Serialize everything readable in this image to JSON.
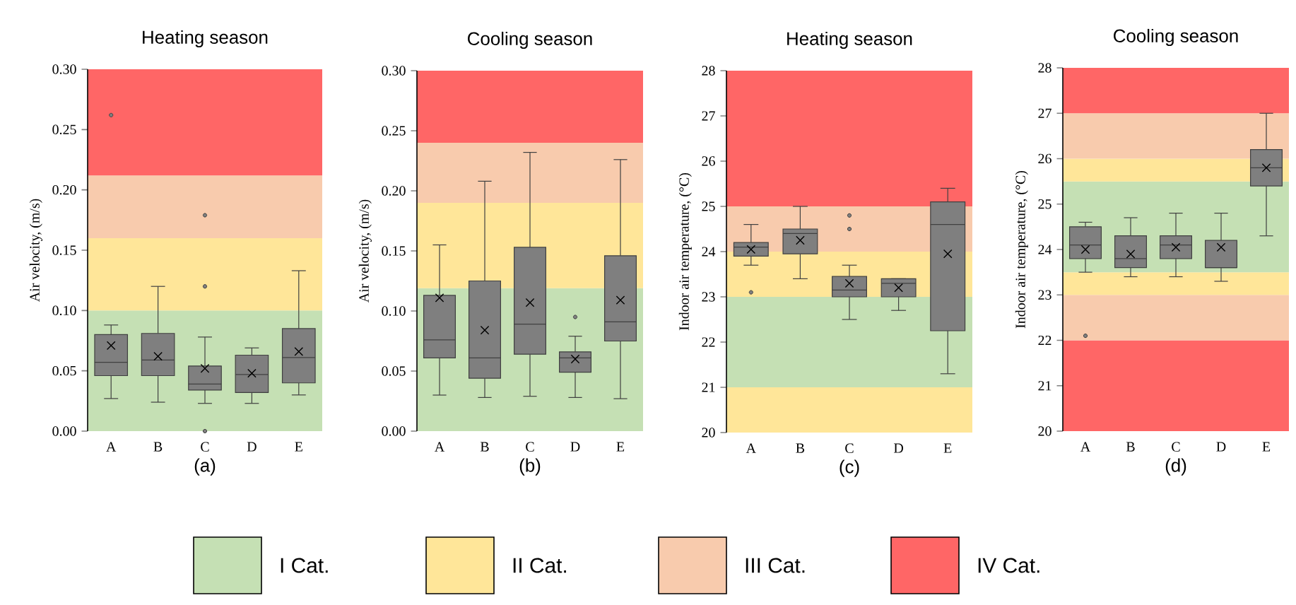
{
  "chart_data": [
    {
      "type": "box",
      "title": "Heating season",
      "xlabel": "(a)",
      "ylabel": "Air velocity, (m/s)",
      "categories": [
        "A",
        "B",
        "C",
        "D",
        "E"
      ],
      "ylim": [
        0,
        0.3
      ],
      "yticks": [
        {
          "value": 0,
          "label": "0.00"
        },
        {
          "value": 0.05,
          "label": "0.05"
        },
        {
          "value": 0.1,
          "label": "0.10"
        },
        {
          "value": 0.15,
          "label": "0.15"
        },
        {
          "value": 0.2,
          "label": "0.20"
        },
        {
          "value": 0.25,
          "label": "0.25"
        },
        {
          "value": 0.3,
          "label": "0.30"
        }
      ],
      "bands": [
        {
          "axis": "y",
          "from": 0,
          "to": 0.1,
          "color": "#c5e0b4"
        },
        {
          "axis": "y",
          "from": 0.1,
          "to": 0.16,
          "color": "#ffe699"
        },
        {
          "axis": "y",
          "from": 0.16,
          "to": 0.212,
          "color": "#f8cbad"
        },
        {
          "axis": "y",
          "from": 0.212,
          "to": 0.3,
          "color": "#ff6666"
        }
      ],
      "series": [
        {
          "color": "#7f7f7f",
          "boxes": [
            {
              "low": 0.027,
              "q1": 0.046,
              "median": 0.057,
              "q3": 0.08,
              "high": 0.088,
              "mean": 0.071,
              "outliers": [
                0.262
              ]
            },
            {
              "low": 0.024,
              "q1": 0.046,
              "median": 0.059,
              "q3": 0.081,
              "high": 0.12,
              "mean": 0.062
            },
            {
              "low": 0.023,
              "q1": 0.034,
              "median": 0.039,
              "q3": 0.054,
              "high": 0.078,
              "mean": 0.052,
              "outliers": [
                0.0,
                0.12,
                0.179
              ]
            },
            {
              "low": 0.023,
              "q1": 0.032,
              "median": 0.047,
              "q3": 0.063,
              "high": 0.069,
              "mean": 0.048
            },
            {
              "low": 0.03,
              "q1": 0.04,
              "median": 0.061,
              "q3": 0.085,
              "high": 0.133,
              "mean": 0.066
            }
          ]
        }
      ]
    },
    {
      "type": "box",
      "title": "Cooling season",
      "xlabel": "(b)",
      "ylabel": "Air velocity, (m/s)",
      "categories": [
        "A",
        "B",
        "C",
        "D",
        "E"
      ],
      "ylim": [
        0,
        0.3
      ],
      "yticks": [
        {
          "value": 0,
          "label": "0.00"
        },
        {
          "value": 0.05,
          "label": "0.05"
        },
        {
          "value": 0.1,
          "label": "0.10"
        },
        {
          "value": 0.15,
          "label": "0.15"
        },
        {
          "value": 0.2,
          "label": "0.20"
        },
        {
          "value": 0.25,
          "label": "0.25"
        },
        {
          "value": 0.3,
          "label": "0.30"
        }
      ],
      "bands": [
        {
          "axis": "y",
          "from": 0,
          "to": 0.119,
          "color": "#c5e0b4"
        },
        {
          "axis": "y",
          "from": 0.119,
          "to": 0.19,
          "color": "#ffe699"
        },
        {
          "axis": "y",
          "from": 0.19,
          "to": 0.24,
          "color": "#f8cbad"
        },
        {
          "axis": "y",
          "from": 0.24,
          "to": 0.3,
          "color": "#ff6666"
        }
      ],
      "series": [
        {
          "color": "#7f7f7f",
          "boxes": [
            {
              "low": 0.03,
              "q1": 0.061,
              "median": 0.076,
              "q3": 0.113,
              "high": 0.155,
              "mean": 0.111
            },
            {
              "low": 0.028,
              "q1": 0.044,
              "median": 0.061,
              "q3": 0.125,
              "high": 0.208,
              "mean": 0.084
            },
            {
              "low": 0.029,
              "q1": 0.064,
              "median": 0.089,
              "q3": 0.153,
              "high": 0.232,
              "mean": 0.107
            },
            {
              "low": 0.028,
              "q1": 0.049,
              "median": 0.061,
              "q3": 0.066,
              "high": 0.079,
              "mean": 0.06,
              "outliers": [
                0.095
              ]
            },
            {
              "low": 0.027,
              "q1": 0.075,
              "median": 0.091,
              "q3": 0.146,
              "high": 0.226,
              "mean": 0.109
            }
          ]
        }
      ]
    },
    {
      "type": "box",
      "title": "Heating season",
      "xlabel": "(c)",
      "ylabel": "Indoor air temperature, (°C)",
      "categories": [
        "A",
        "B",
        "C",
        "D",
        "E"
      ],
      "ylim": [
        20,
        28
      ],
      "yticks": [
        20,
        21,
        22,
        23,
        24,
        25,
        26,
        27,
        28
      ],
      "bands": [
        {
          "axis": "y",
          "from": 20,
          "to": 21,
          "color": "#ffe699"
        },
        {
          "axis": "y",
          "from": 21,
          "to": 23,
          "color": "#c5e0b4"
        },
        {
          "axis": "y",
          "from": 23,
          "to": 24,
          "color": "#ffe699"
        },
        {
          "axis": "y",
          "from": 24,
          "to": 25,
          "color": "#f8cbad"
        },
        {
          "axis": "y",
          "from": 25,
          "to": 28,
          "color": "#ff6666"
        }
      ],
      "series": [
        {
          "color": "#7f7f7f",
          "boxes": [
            {
              "low": 23.7,
              "q1": 23.9,
              "median": 24.1,
              "q3": 24.2,
              "high": 24.6,
              "mean": 24.05,
              "outliers": [
                23.1
              ]
            },
            {
              "low": 23.4,
              "q1": 23.95,
              "median": 24.4,
              "q3": 24.5,
              "high": 25.0,
              "mean": 24.25
            },
            {
              "low": 22.5,
              "q1": 23.0,
              "median": 23.15,
              "q3": 23.45,
              "high": 23.7,
              "mean": 23.3,
              "outliers": [
                24.5,
                24.8
              ]
            },
            {
              "low": 22.7,
              "q1": 23.0,
              "median": 23.3,
              "q3": 23.4,
              "high": 23.4,
              "mean": 23.2
            },
            {
              "low": 21.3,
              "q1": 22.25,
              "median": 24.6,
              "q3": 25.1,
              "high": 25.4,
              "mean": 23.95
            }
          ]
        }
      ]
    },
    {
      "type": "box",
      "title": "Cooling season",
      "xlabel": "(d)",
      "ylabel": "Indoor air temperature, (°C)",
      "categories": [
        "A",
        "B",
        "C",
        "D",
        "E"
      ],
      "ylim": [
        20,
        28
      ],
      "yticks": [
        20,
        21,
        22,
        23,
        24,
        25,
        26,
        27,
        28
      ],
      "bands": [
        {
          "axis": "y",
          "from": 20,
          "to": 22,
          "color": "#ff6666"
        },
        {
          "axis": "y",
          "from": 22,
          "to": 23,
          "color": "#f8cbad"
        },
        {
          "axis": "y",
          "from": 23,
          "to": 23.5,
          "color": "#ffe699"
        },
        {
          "axis": "y",
          "from": 23.5,
          "to": 25.5,
          "color": "#c5e0b4"
        },
        {
          "axis": "y",
          "from": 25.5,
          "to": 26,
          "color": "#ffe699"
        },
        {
          "axis": "y",
          "from": 26,
          "to": 27,
          "color": "#f8cbad"
        },
        {
          "axis": "y",
          "from": 27,
          "to": 28,
          "color": "#ff6666"
        }
      ],
      "series": [
        {
          "color": "#7f7f7f",
          "boxes": [
            {
              "low": 23.5,
              "q1": 23.8,
              "median": 24.1,
              "q3": 24.5,
              "high": 24.6,
              "mean": 24.0,
              "outliers": [
                22.1
              ]
            },
            {
              "low": 23.4,
              "q1": 23.6,
              "median": 23.8,
              "q3": 24.3,
              "high": 24.7,
              "mean": 23.9
            },
            {
              "low": 23.4,
              "q1": 23.8,
              "median": 24.1,
              "q3": 24.3,
              "high": 24.8,
              "mean": 24.05
            },
            {
              "low": 23.3,
              "q1": 23.6,
              "median": 23.6,
              "q3": 24.2,
              "high": 24.8,
              "mean": 24.05
            },
            {
              "low": 24.3,
              "q1": 25.4,
              "median": 25.8,
              "q3": 26.2,
              "high": 27.0,
              "mean": 25.8
            }
          ]
        }
      ]
    },
    {
      "type": "other",
      "categories": [
        "I Cat.",
        "II Cat.",
        "III Cat.",
        "IV Cat."
      ],
      "colors": [
        "#c5e0b4",
        "#ffe699",
        "#f8cbad",
        "#ff6666"
      ]
    }
  ]
}
